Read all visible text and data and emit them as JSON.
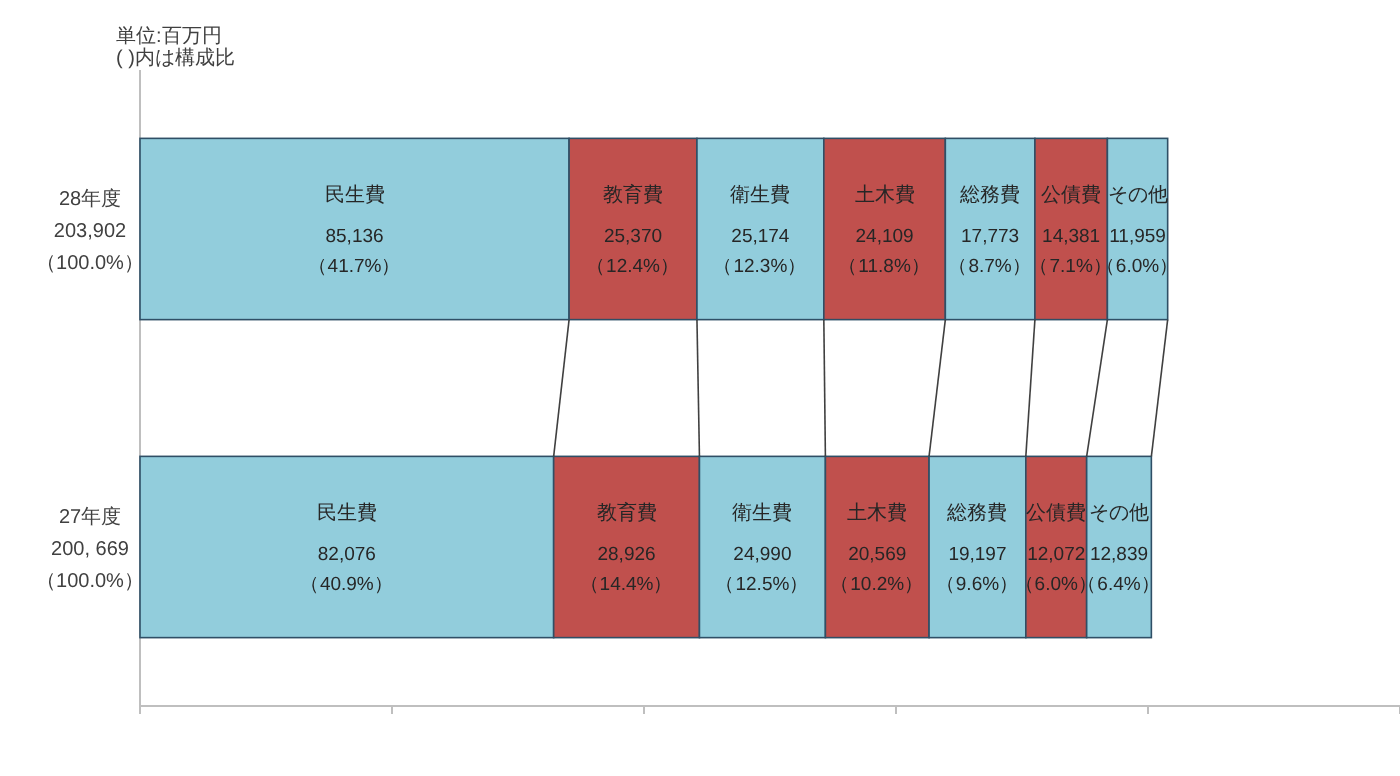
{
  "chart_data": {
    "type": "bar",
    "orientation": "horizontal",
    "stacked": true,
    "categories": [
      "28年度\n203,902\n（100.0%）",
      "27年度\n200, 669\n（100.0%）"
    ],
    "series": [
      {
        "name": "民生費",
        "color": "#92cddc",
        "values": [
          85136,
          82076
        ],
        "value_labels": [
          "85,136\n（41.7%）",
          "82,076\n（40.9%）"
        ]
      },
      {
        "name": "教育費",
        "color": "#c0504d",
        "values": [
          25370,
          28926
        ],
        "value_labels": [
          "25,370\n（12.4%）",
          "28,926\n（14.4%）"
        ]
      },
      {
        "name": "衛生費",
        "color": "#92cddc",
        "values": [
          25174,
          24990
        ],
        "value_labels": [
          "25,174\n（12.3%）",
          "24,990\n（12.5%）"
        ]
      },
      {
        "name": "土木費",
        "color": "#c0504d",
        "values": [
          24109,
          20569
        ],
        "value_labels": [
          "24,109\n（11.8%）",
          "20,569\n（10.2%）"
        ]
      },
      {
        "name": "総務費",
        "color": "#92cddc",
        "values": [
          17773,
          19197
        ],
        "value_labels": [
          "17,773\n（8.7%）",
          "19,197\n（9.6%）"
        ]
      },
      {
        "name": "公債費",
        "color": "#c0504d",
        "values": [
          14381,
          12072
        ],
        "value_labels": [
          "14,381\n（7.1%）",
          "12,072\n（6.0%）"
        ]
      },
      {
        "name": "その他",
        "color": "#92cddc",
        "values": [
          11959,
          12839
        ],
        "value_labels": [
          "11,959\n（6.0%）",
          "12,839\n（6.4%）"
        ]
      }
    ],
    "xlim": [
      0,
      250000
    ],
    "xticks": [
      {
        "value": 0,
        "label": null
      },
      {
        "value": 50000,
        "label": null
      },
      {
        "value": 100000,
        "label": null
      },
      {
        "value": 150000,
        "label": null
      },
      {
        "value": 200000,
        "label": null
      },
      {
        "value": 250000,
        "label": null
      }
    ],
    "tick_labels": "y",
    "annotations": [
      "単位:百万円",
      "(  )内は構成比"
    ]
  }
}
